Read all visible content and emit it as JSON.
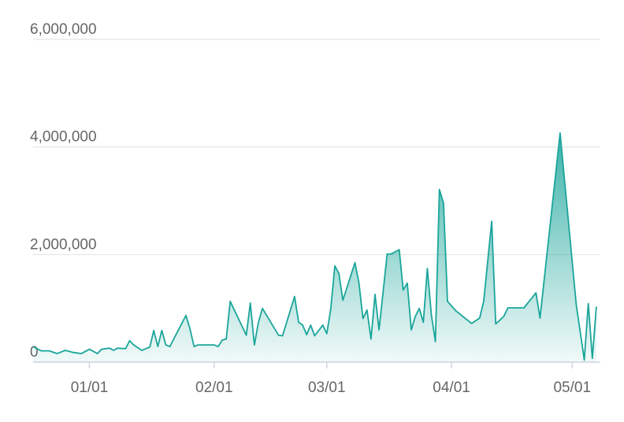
{
  "chart_data": {
    "type": "area",
    "color": "#1aa59a",
    "grid": true,
    "xlim": [
      "12/18",
      "05/08"
    ],
    "xticks": [
      "01/01",
      "02/01",
      "03/01",
      "04/01",
      "05/01"
    ],
    "ylim": [
      0,
      6000000
    ],
    "yticks": [
      0,
      {
        "value": 2000000,
        "label": "2,000,000"
      },
      {
        "value": 4000000,
        "label": "4,000,000"
      },
      {
        "value": 6000000,
        "label": "6,000,000"
      }
    ],
    "x": [
      "12/18",
      "12/20",
      "12/22",
      "12/24",
      "12/26",
      "12/28",
      "12/30",
      "01/01",
      "01/03",
      "01/04",
      "01/06",
      "01/07",
      "01/08",
      "01/10",
      "01/11",
      "01/12",
      "01/14",
      "01/15",
      "01/16",
      "01/17",
      "01/18",
      "01/19",
      "01/20",
      "01/21",
      "01/25",
      "01/26",
      "01/27",
      "01/28",
      "02/01",
      "02/02",
      "02/03",
      "02/04",
      "02/05",
      "02/09",
      "02/10",
      "02/11",
      "02/12",
      "02/13",
      "02/17",
      "02/18",
      "02/21",
      "02/22",
      "02/23",
      "02/24",
      "02/25",
      "02/26",
      "02/28",
      "03/01",
      "03/02",
      "03/03",
      "03/04",
      "03/05",
      "03/08",
      "03/09",
      "03/10",
      "03/11",
      "03/12",
      "03/13",
      "03/14",
      "03/16",
      "03/17",
      "03/19",
      "03/20",
      "03/21",
      "03/22",
      "03/23",
      "03/24",
      "03/25",
      "03/26",
      "03/27",
      "03/28",
      "03/29",
      "03/30",
      "03/31",
      "04/02",
      "04/06",
      "04/08",
      "04/09",
      "04/11",
      "04/12",
      "04/14",
      "04/15",
      "04/19",
      "04/22",
      "04/23",
      "04/28",
      "05/02",
      "05/04",
      "05/05",
      "05/06",
      "05/07"
    ],
    "values": [
      290000,
      210000,
      210000,
      160000,
      220000,
      180000,
      160000,
      240000,
      160000,
      240000,
      260000,
      220000,
      260000,
      250000,
      400000,
      320000,
      220000,
      250000,
      280000,
      590000,
      290000,
      590000,
      320000,
      290000,
      870000,
      620000,
      290000,
      320000,
      320000,
      290000,
      410000,
      430000,
      1130000,
      500000,
      1100000,
      320000,
      740000,
      1000000,
      500000,
      490000,
      1220000,
      740000,
      690000,
      510000,
      690000,
      490000,
      690000,
      530000,
      1000000,
      1790000,
      1650000,
      1150000,
      1850000,
      1470000,
      810000,
      970000,
      430000,
      1260000,
      600000,
      2010000,
      2010000,
      2090000,
      1340000,
      1470000,
      600000,
      850000,
      1000000,
      740000,
      1740000,
      880000,
      380000,
      3210000,
      2960000,
      1130000,
      960000,
      720000,
      820000,
      1130000,
      2620000,
      710000,
      850000,
      1010000,
      1010000,
      1290000,
      820000,
      4260000,
      1070000,
      40000,
      1090000,
      70000,
      1030000
    ]
  }
}
